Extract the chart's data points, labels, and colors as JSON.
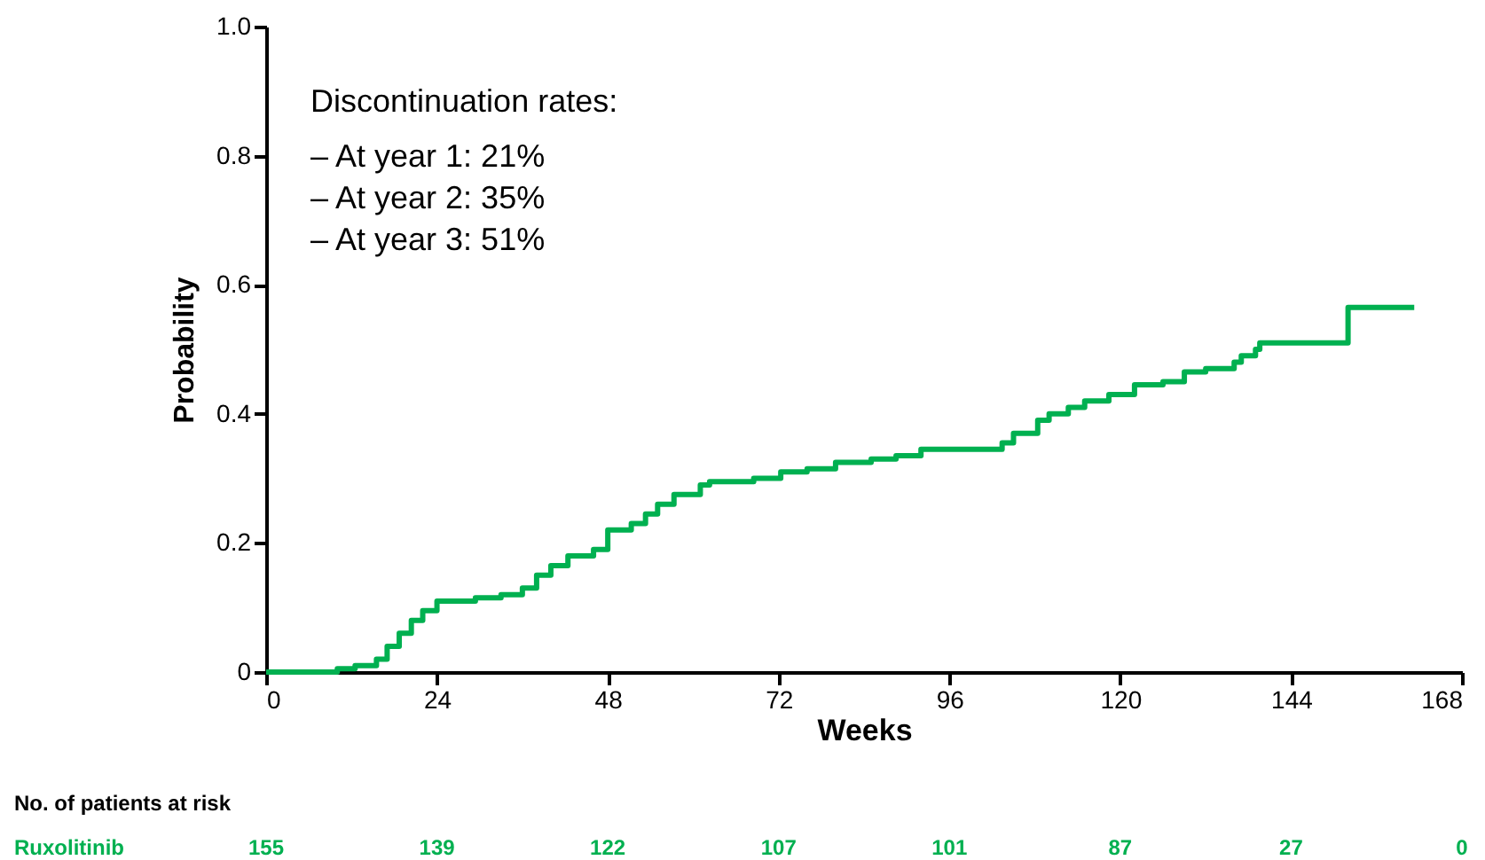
{
  "chart_data": {
    "type": "step",
    "xlabel": "Weeks",
    "ylabel": "Probability",
    "x": [
      0,
      10,
      12.5,
      15.5,
      17,
      18.7,
      20.4,
      22,
      24,
      29.4,
      33,
      36,
      38,
      40,
      42.4,
      46,
      48,
      51.3,
      53.3,
      55,
      57.3,
      61,
      62.3,
      68.5,
      72.3,
      76,
      80,
      85,
      88.5,
      92,
      103.4,
      105,
      108.4,
      110,
      112.7,
      115,
      118.4,
      122,
      126,
      129,
      132,
      136,
      137,
      139,
      139.6,
      152,
      161.3
    ],
    "series": [
      {
        "color": "#00b050",
        "values": [
          0,
          0.005,
          0.01,
          0.02,
          0.04,
          0.06,
          0.08,
          0.095,
          0.11,
          0.115,
          0.12,
          0.13,
          0.15,
          0.165,
          0.18,
          0.19,
          0.22,
          0.23,
          0.245,
          0.26,
          0.275,
          0.29,
          0.295,
          0.3,
          0.31,
          0.315,
          0.325,
          0.33,
          0.335,
          0.345,
          0.355,
          0.37,
          0.39,
          0.4,
          0.41,
          0.42,
          0.43,
          0.445,
          0.45,
          0.465,
          0.47,
          0.48,
          0.49,
          0.5,
          0.51,
          0.565,
          0.565
        ]
      }
    ],
    "xlim": [
      0,
      168
    ],
    "xticks": [
      0,
      24,
      48,
      72,
      96,
      120,
      144,
      168
    ],
    "ylim": [
      0,
      1
    ],
    "yticks": [
      0,
      0.2,
      0.4,
      0.6,
      0.8,
      {
        "value": 1,
        "label": "1.0"
      }
    ],
    "grid": false,
    "line_style": "solid",
    "annotations": [
      "Discontinuation rates:",
      "– At year 1: 21%",
      "– At year 2: 35%",
      "– At year 3: 51%",
      "No. of patients at risk",
      "Ruxolitinib",
      "155",
      "139",
      "122",
      "107",
      "101",
      "87",
      "27",
      "0"
    ]
  }
}
